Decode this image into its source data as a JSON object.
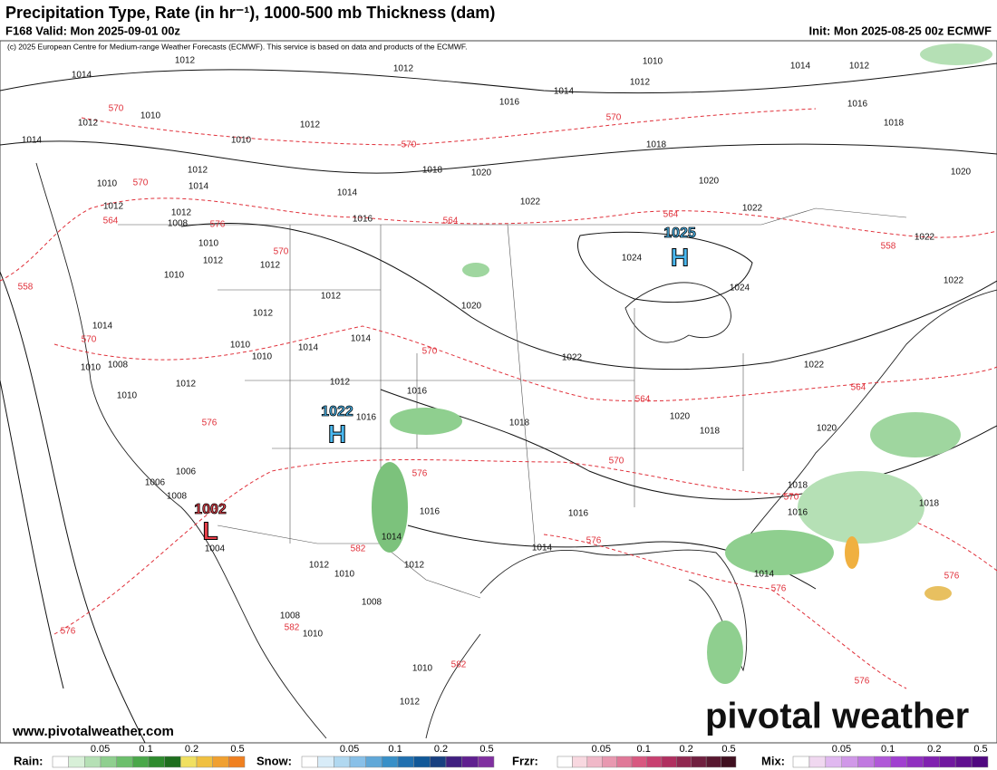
{
  "header": {
    "title": "Precipitation Type, Rate (in hr⁻¹), 1000-500 mb Thickness (dam)",
    "valid": "F168 Valid: Mon 2025-09-01 00z",
    "init": "Init: Mon 2025-08-25 00z ECMWF",
    "credit": "(c) 2025 European Centre for Medium-range Weather Forecasts (ECMWF). This service is based on data and products of the ECMWF."
  },
  "centers": [
    {
      "letter": "H",
      "value": "1025"
    },
    {
      "letter": "H",
      "value": "1022"
    },
    {
      "letter": "L",
      "value": "1002"
    }
  ],
  "isobar_labels": [
    "1014",
    "1012",
    "1012",
    "1010",
    "1010",
    "1014",
    "1012",
    "1012",
    "1010",
    "1012",
    "1014",
    "1016",
    "1018",
    "1018",
    "1020",
    "1014",
    "1016",
    "1022",
    "1020",
    "1022",
    "1014",
    "1012",
    "1016",
    "1018",
    "1020",
    "1024",
    "1024",
    "1022",
    "1022",
    "1020",
    "1022",
    "1022",
    "1020",
    "1018",
    "1020",
    "1018",
    "1016",
    "1018",
    "1016",
    "1018",
    "1016",
    "1014",
    "1016",
    "1014",
    "1014",
    "1012",
    "1012",
    "1010",
    "1008",
    "1008",
    "1010",
    "1010",
    "1012",
    "1010",
    "1008",
    "1010",
    "1012",
    "1010",
    "1010",
    "1012",
    "1012",
    "1014",
    "1014",
    "1012",
    "1016",
    "1006",
    "1008",
    "1006",
    "1004",
    "1010",
    "1012",
    "1010",
    "1012",
    "1014",
    "1008",
    "1012",
    "1014",
    "1010",
    "1012",
    "1012"
  ],
  "thickness_labels": [
    "570",
    "570",
    "570",
    "570",
    "564",
    "564",
    "558",
    "558",
    "564",
    "570",
    "576",
    "570",
    "564",
    "564",
    "576",
    "570",
    "570",
    "576",
    "576",
    "576",
    "576",
    "576",
    "582",
    "582",
    "582",
    "570",
    "576"
  ],
  "url": "www.pivotalweather.com",
  "watermark": "pivotal weather",
  "legend": [
    {
      "name": "Rain:",
      "ticks": [
        "0.05",
        "0.1",
        "0.2",
        "0.5"
      ]
    },
    {
      "name": "Snow:",
      "ticks": [
        "0.05",
        "0.1",
        "0.2",
        "0.5"
      ]
    },
    {
      "name": "Frzr:",
      "ticks": [
        "0.05",
        "0.1",
        "0.2",
        "0.5"
      ]
    },
    {
      "name": "Mix:",
      "ticks": [
        "0.05",
        "0.1",
        "0.2",
        "0.5"
      ]
    }
  ]
}
